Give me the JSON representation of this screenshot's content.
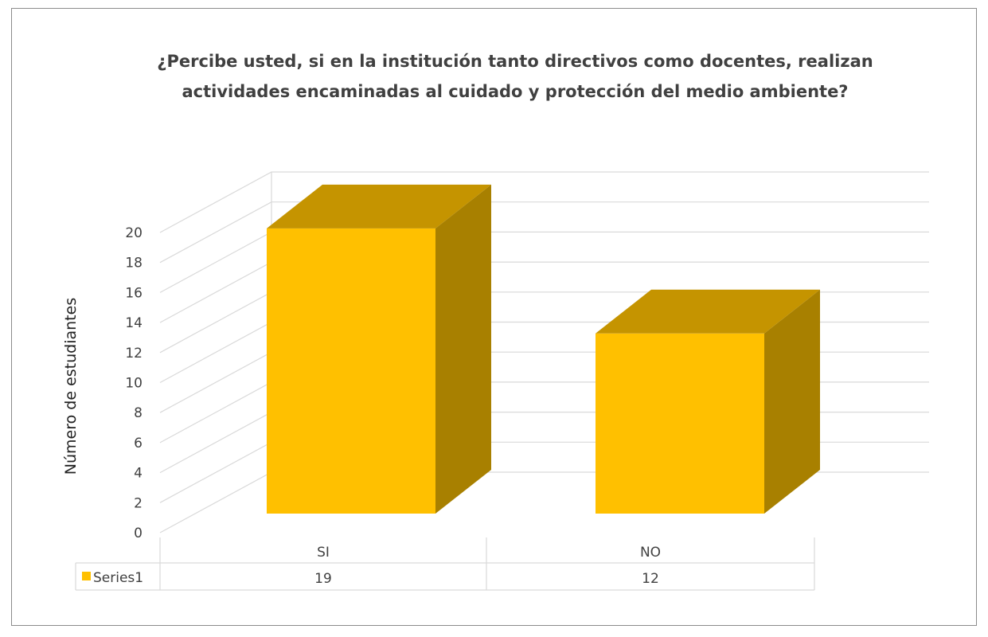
{
  "chart_data": {
    "type": "bar",
    "title": "¿Percibe usted, si en la institución tanto directivos como docentes, realizan actividades encaminadas al cuidado y protección del medio ambiente?",
    "title_lines": [
      "¿Percibe usted, si en la institución tanto directivos como docentes, realizan",
      "actividades encaminadas al cuidado y protección del medio ambiente?"
    ],
    "xlabel": "",
    "ylabel": "Número de estudiantes",
    "categories": [
      "SI",
      "NO"
    ],
    "series": [
      {
        "name": "Series1",
        "values": [
          19,
          12
        ],
        "color": "#FFC000"
      }
    ],
    "ylim": [
      0,
      20
    ],
    "yticks": [
      0,
      2,
      4,
      6,
      8,
      10,
      12,
      14,
      16,
      18,
      20
    ],
    "grid": true,
    "legend": "data-table",
    "bar_style": "3d"
  }
}
